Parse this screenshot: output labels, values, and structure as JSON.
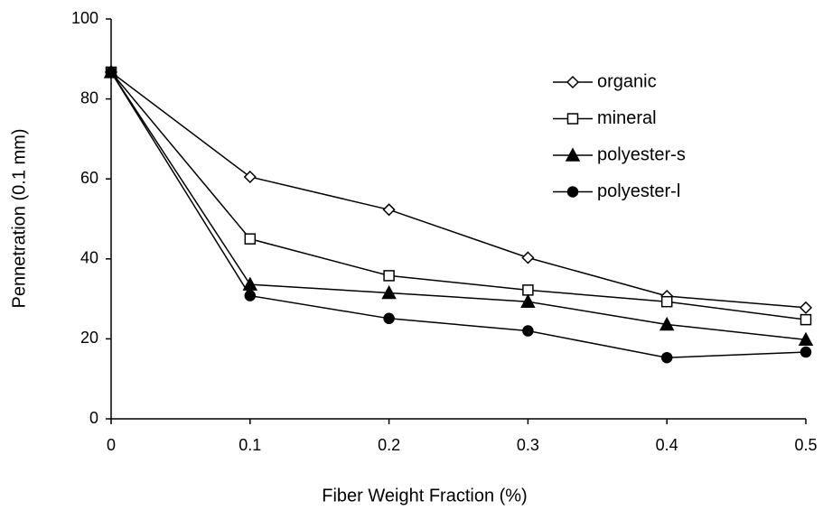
{
  "chart_data": {
    "type": "line",
    "x_label": "Fiber Weight Fraction (%)",
    "y_label": "Pennetration (0.1 mm)",
    "x": [
      0,
      0.1,
      0.2,
      0.3,
      0.4,
      0.5
    ],
    "xlim": [
      0,
      0.5
    ],
    "xticks": [
      0,
      0.1,
      0.2,
      0.3,
      0.4,
      0.5
    ],
    "ylim": [
      0,
      100
    ],
    "yticks": [
      0,
      20,
      40,
      60,
      80,
      100
    ],
    "legend": "upper right",
    "series": [
      {
        "name": "organic",
        "color": "#000000",
        "marker": "diamond",
        "marker_fill": "#ffffff",
        "values": [
          86.7,
          60.5,
          52.3,
          40.3,
          30.7,
          27.8
        ]
      },
      {
        "name": "mineral",
        "color": "#000000",
        "marker": "square",
        "marker_fill": "#ffffff",
        "values": [
          86.7,
          45,
          35.8,
          32.2,
          29.3,
          24.8
        ]
      },
      {
        "name": "polyester-s",
        "color": "#000000",
        "marker": "triangle",
        "marker_fill": "#000000",
        "values": [
          86.7,
          33.6,
          31.5,
          29.3,
          23.6,
          19.8
        ]
      },
      {
        "name": "polyester-l",
        "color": "#000000",
        "marker": "circle",
        "marker_fill": "#000000",
        "values": [
          86.7,
          30.8,
          25.1,
          22,
          15.3,
          16.7
        ]
      }
    ]
  }
}
